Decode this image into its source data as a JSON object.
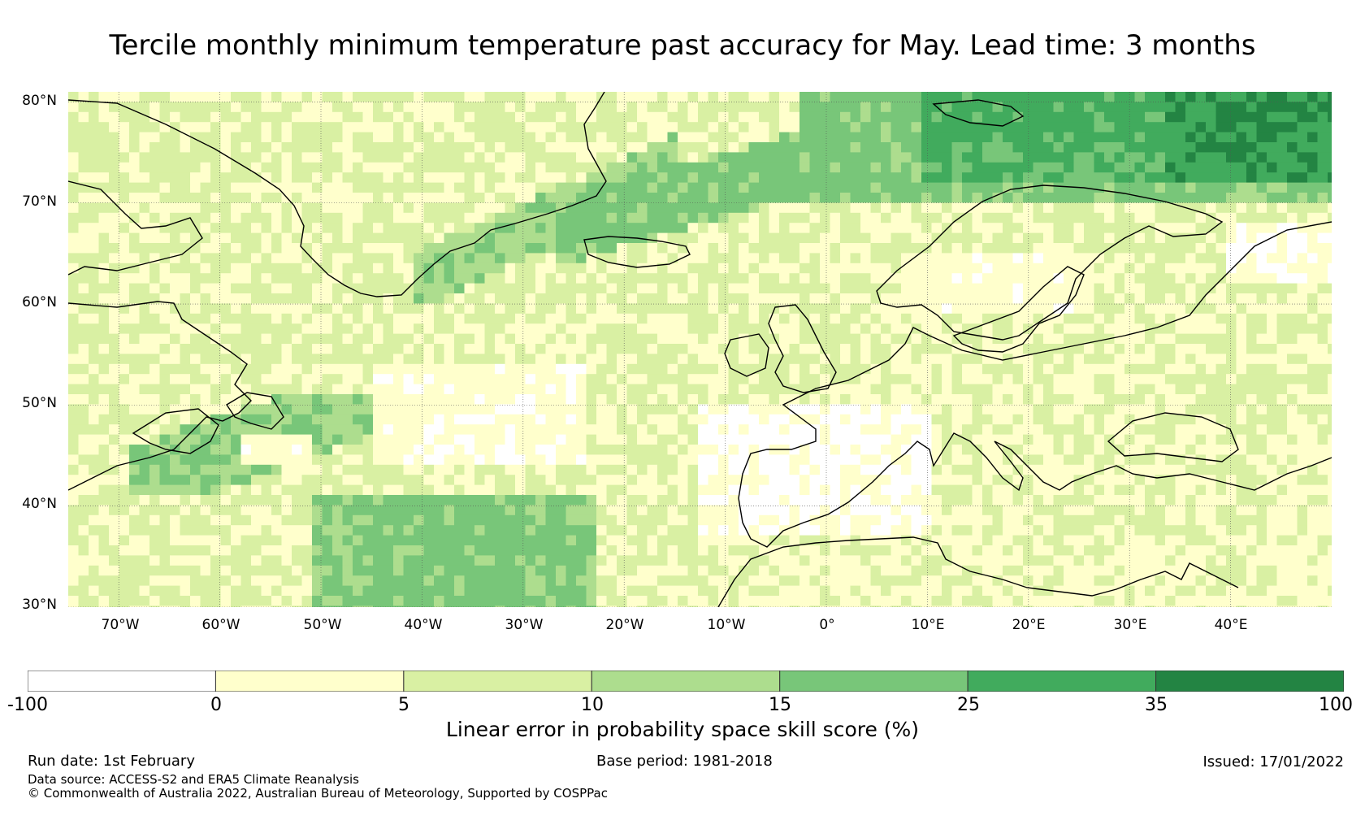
{
  "title": "Tercile monthly minimum temperature past accuracy for May. Lead time: 3 months",
  "map": {
    "lat_range": [
      30,
      81
    ],
    "lon_range": [
      -75,
      50
    ],
    "lat_labels": [
      "80°N",
      "70°N",
      "60°N",
      "50°N",
      "40°N",
      "30°N"
    ],
    "lon_labels": [
      "70°W",
      "60°W",
      "50°W",
      "40°W",
      "30°W",
      "20°W",
      "10°W",
      "0°",
      "10°E",
      "20°E",
      "30°E",
      "40°E"
    ],
    "regions": [
      {
        "name": "high-skill-barents",
        "class": 6
      },
      {
        "name": "high-skill-norwegian-sea",
        "class": 5
      },
      {
        "name": "medium-skill-greenland-coast",
        "class": 4
      },
      {
        "name": "medium-skill-subtropical-atlantic",
        "class": 4
      },
      {
        "name": "medium-skill-nova-scotia",
        "class": 4
      },
      {
        "name": "no-skill-iberia-mediterranean",
        "class": 0
      },
      {
        "name": "no-skill-mid-atlantic",
        "class": 0
      }
    ]
  },
  "colorbar": {
    "ticks": [
      "-100",
      "0",
      "5",
      "10",
      "15",
      "25",
      "35",
      "100"
    ],
    "colors": [
      "#ffffff",
      "#ffffcc",
      "#d9f0a3",
      "#addd8e",
      "#78c679",
      "#41ab5d",
      "#238443"
    ],
    "label": "Linear error in probability space skill score (%)"
  },
  "footer": {
    "run_date": "Run date: 1st February",
    "base_period": "Base period: 1981-2018",
    "issued": "Issued: 17/01/2022",
    "data_source": "Data source: ACCESS-S2 and ERA5 Climate Reanalysis",
    "copyright": "© Commonwealth of Australia 2022, Australian Bureau of Meteorology, Supported by COSPPac"
  }
}
